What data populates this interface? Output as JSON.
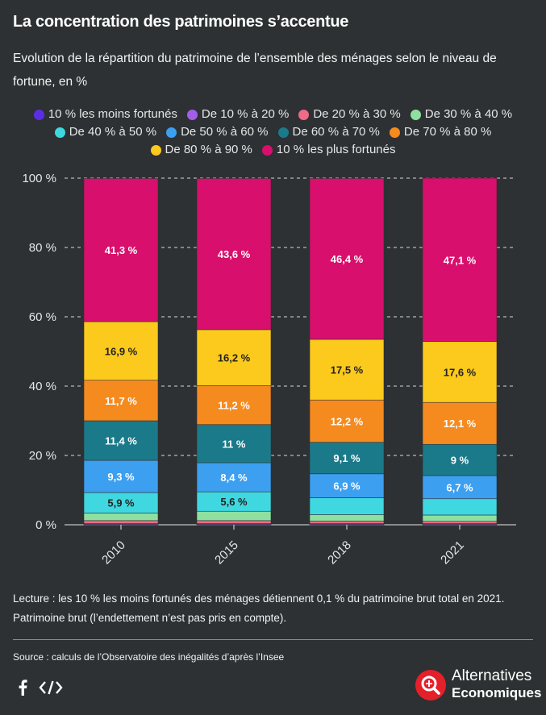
{
  "title": "La concentration des patrimoines s’accentue",
  "subtitle": "Evolution de la répartition du patrimoine de l’ensemble des ménages selon le niveau de fortune, en %",
  "note": "Lecture : les 10 % les moins fortunés des ménages détiennent 0,1 % du patrimoine brut total en 2021. Patrimoine brut (l’endettement n’est pas pris en compte).",
  "source": "Source : calculs de l’Observatoire des inégalités d’après l’Insee",
  "brand": {
    "line1": "Alternatives",
    "line2": "Economiques"
  },
  "icons": {
    "facebook": "facebook-icon",
    "embed": "embed-code-icon",
    "logo": "magnifier-logo-icon"
  },
  "chart_data": {
    "type": "bar",
    "stacked": true,
    "categories": [
      "2010",
      "2015",
      "2018",
      "2021"
    ],
    "ylim": [
      0,
      100
    ],
    "yticks": [
      0,
      20,
      40,
      60,
      80,
      100
    ],
    "ytick_labels": [
      "0 %",
      "20 %",
      "40 %",
      "60 %",
      "80 %",
      "100 %"
    ],
    "grid": true,
    "legend_position": "top",
    "series": [
      {
        "name": "10 % les moins fortunés",
        "color": "#5b2ee6",
        "values": [
          0.1,
          0.1,
          0.1,
          0.1
        ],
        "labels": [
          "",
          "",
          "",
          ""
        ]
      },
      {
        "name": "De 10 % à 20 %",
        "color": "#a45de8",
        "values": [
          0.3,
          0.3,
          0.3,
          0.3
        ],
        "labels": [
          "",
          "",
          "",
          ""
        ]
      },
      {
        "name": "De 20 % à 30 %",
        "color": "#ee6b86",
        "values": [
          0.8,
          0.8,
          0.7,
          0.6
        ],
        "labels": [
          "",
          "",
          "",
          ""
        ]
      },
      {
        "name": "De 30 % à 40 %",
        "color": "#8fe0a0",
        "values": [
          2.2,
          2.7,
          1.8,
          1.8
        ],
        "labels": [
          "",
          "",
          "",
          ""
        ]
      },
      {
        "name": "De 40 % à 50 %",
        "color": "#3fd8e0",
        "values": [
          5.9,
          5.6,
          4.9,
          4.7
        ],
        "labels": [
          "5,9 %",
          "5,6 %",
          "",
          ""
        ]
      },
      {
        "name": "De 50 % à 60 %",
        "color": "#3d9ff0",
        "values": [
          9.3,
          8.4,
          6.9,
          6.7
        ],
        "labels": [
          "9,3 %",
          "8,4 %",
          "6,9 %",
          "6,7 %"
        ]
      },
      {
        "name": "De 60 % à 70 %",
        "color": "#1a7a8a",
        "values": [
          11.4,
          11,
          9.1,
          9
        ],
        "labels": [
          "11,4 %",
          "11 %",
          "9,1 %",
          "9 %"
        ]
      },
      {
        "name": "De 70 % à 80 %",
        "color": "#f58a1f",
        "values": [
          11.7,
          11.2,
          12.2,
          12.1
        ],
        "labels": [
          "11,7 %",
          "11,2 %",
          "12,2 %",
          "12,1 %"
        ]
      },
      {
        "name": "De 80 % à 90 %",
        "color": "#fcca1c",
        "values": [
          16.9,
          16.2,
          17.5,
          17.6
        ],
        "labels": [
          "16,9 %",
          "16,2 %",
          "17,5 %",
          "17,6 %"
        ]
      },
      {
        "name": "10 % les plus fortunés",
        "color": "#d80f6c",
        "values": [
          41.3,
          43.6,
          46.4,
          47.1
        ],
        "labels": [
          "41,3 %",
          "43,6 %",
          "46,4 %",
          "47,1 %"
        ]
      }
    ]
  }
}
